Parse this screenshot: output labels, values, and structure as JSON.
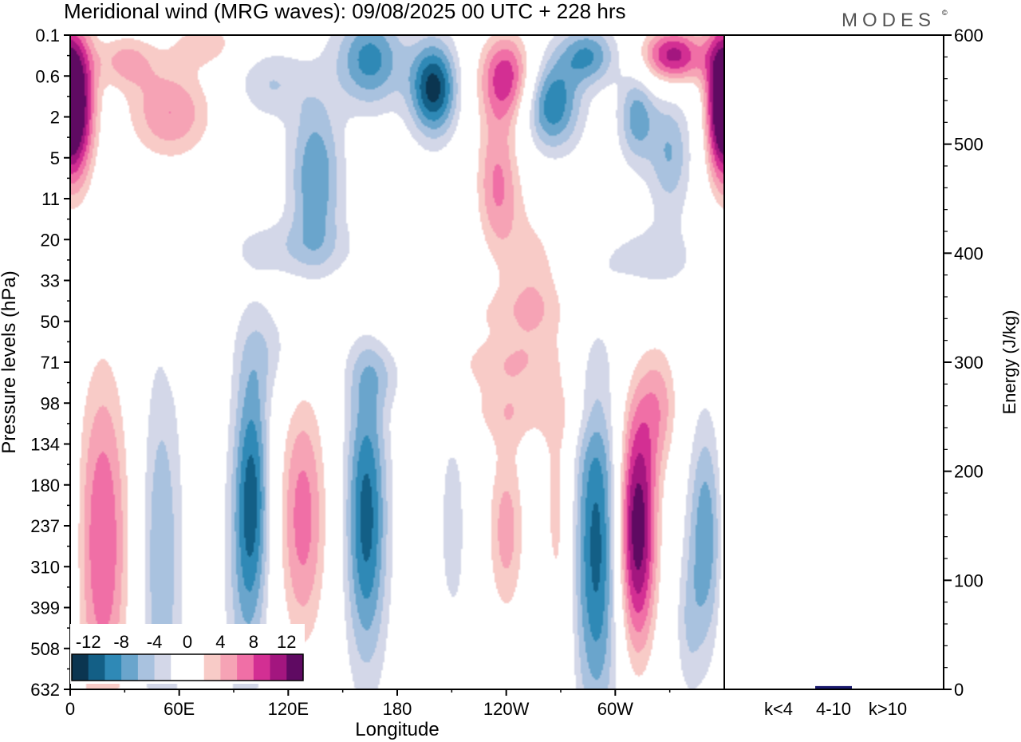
{
  "chart_data": {
    "type": "heatmap",
    "title": "Meridional wind (MRG waves):  09/08/2025  00 UTC  + 228 hrs",
    "brand": "MODES",
    "brand_mark": "©",
    "main_panel": {
      "xlabel": "Longitude",
      "ylabel": "Pressure levels (hPa)",
      "x_ticks": [
        "0",
        "60E",
        "120E",
        "180",
        "120W",
        "60W"
      ],
      "x_tick_values": [
        0,
        60,
        120,
        180,
        240,
        300
      ],
      "x_range": [
        0,
        360
      ],
      "y_ticks": [
        "0.1",
        "0.6",
        "2",
        "5",
        "11",
        "20",
        "33",
        "50",
        "71",
        "98",
        "134",
        "180",
        "237",
        "310",
        "399",
        "508",
        "632"
      ],
      "contour_levels": [
        -14,
        -12,
        -10,
        -8,
        -6,
        -4,
        -2,
        2,
        4,
        6,
        8,
        10,
        12,
        14
      ],
      "fields": [
        {
          "lon": 5,
          "lev": 1.7,
          "amp": 13,
          "slon": 7,
          "slev": 1.4
        },
        {
          "lon": 357,
          "lev": 1.7,
          "amp": 12,
          "slon": 6,
          "slev": 1.4
        },
        {
          "lon": 55,
          "lev": 1.9,
          "amp": 8,
          "slon": 18,
          "slev": 0.9
        },
        {
          "lon": 30,
          "lev": 0.6,
          "amp": 6,
          "slon": 12,
          "slev": 0.5
        },
        {
          "lon": 75,
          "lev": 0.2,
          "amp": 5,
          "slon": 14,
          "slev": 0.4
        },
        {
          "lon": 110,
          "lev": 1.2,
          "amp": -4,
          "slon": 14,
          "slev": 0.6
        },
        {
          "lon": 135,
          "lev": 3.5,
          "amp": -8,
          "slon": 10,
          "slev": 1.4
        },
        {
          "lon": 165,
          "lev": 0.6,
          "amp": -9,
          "slon": 13,
          "slev": 0.8
        },
        {
          "lon": 200,
          "lev": 1.3,
          "amp": -13,
          "slon": 9,
          "slev": 0.8
        },
        {
          "lon": 240,
          "lev": 1.0,
          "amp": 11,
          "slon": 11,
          "slev": 0.8
        },
        {
          "lon": 235,
          "lev": 3.6,
          "amp": 8,
          "slon": 9,
          "slev": 1.3
        },
        {
          "lon": 265,
          "lev": 1.7,
          "amp": -10,
          "slon": 11,
          "slev": 0.8
        },
        {
          "lon": 255,
          "lev": 6.0,
          "amp": 5,
          "slon": 13,
          "slev": 1.5
        },
        {
          "lon": 285,
          "lev": 0.5,
          "amp": -8,
          "slon": 11,
          "slev": 0.5
        },
        {
          "lon": 312,
          "lev": 2.0,
          "amp": -7,
          "slon": 7,
          "slev": 0.8
        },
        {
          "lon": 330,
          "lev": 2.9,
          "amp": -6,
          "slon": 8,
          "slev": 1.0
        },
        {
          "lon": 332,
          "lev": 0.5,
          "amp": 13,
          "slon": 13,
          "slev": 0.5
        },
        {
          "lon": 320,
          "lev": 5.5,
          "amp": -3,
          "slon": 20,
          "slev": 0.7
        },
        {
          "lon": 120,
          "lev": 5.2,
          "amp": -3,
          "slon": 25,
          "slev": 0.5
        },
        {
          "lon": 215,
          "lev": 6.8,
          "amp": 3,
          "slon": 45,
          "slev": 0.5
        },
        {
          "lon": 110,
          "lev": 7.7,
          "amp": -3,
          "slon": 13,
          "slev": 0.9
        },
        {
          "lon": 70,
          "lev": 8.0,
          "amp": 3,
          "slon": 8,
          "slev": 0.4
        },
        {
          "lon": 235,
          "lev": 8.0,
          "amp": 4,
          "slon": 25,
          "slev": 0.5
        },
        {
          "lon": 245,
          "lev": 9.2,
          "amp": 4,
          "slon": 30,
          "slev": 0.6
        },
        {
          "lon": 325,
          "lev": 9.0,
          "amp": 6,
          "slon": 8,
          "slev": 1.2
        },
        {
          "lon": 170,
          "lev": 8.3,
          "amp": -3,
          "slon": 12,
          "slev": 0.6
        },
        {
          "lon": 18,
          "lev": 12.4,
          "amp": 10,
          "slon": 11,
          "slev": 3.3
        },
        {
          "lon": 50,
          "lev": 12.8,
          "amp": -6,
          "slon": 8,
          "slev": 3.3
        },
        {
          "lon": 100,
          "lev": 11.2,
          "amp": -10,
          "slon": 7,
          "slev": 2.2
        },
        {
          "lon": 95,
          "lev": 13.8,
          "amp": -3,
          "slon": 8,
          "slev": 2.5
        },
        {
          "lon": 128,
          "lev": 11.8,
          "amp": 9,
          "slon": 10,
          "slev": 2.4
        },
        {
          "lon": 163,
          "lev": 11.8,
          "amp": -11,
          "slon": 8,
          "slev": 2.5
        },
        {
          "lon": 195,
          "lev": 12.2,
          "amp": 3,
          "slon": 6,
          "slev": 2.8
        },
        {
          "lon": 210,
          "lev": 12.1,
          "amp": -4,
          "slon": 5,
          "slev": 1.8
        },
        {
          "lon": 240,
          "lev": 12.1,
          "amp": 7,
          "slon": 8,
          "slev": 1.7
        },
        {
          "lon": 268,
          "lev": 11.5,
          "amp": 5,
          "slon": 6,
          "slev": 2.0
        },
        {
          "lon": 290,
          "lev": 12.5,
          "amp": -11,
          "slon": 9,
          "slev": 3.0
        },
        {
          "lon": 312,
          "lev": 12.1,
          "amp": 16,
          "slon": 8,
          "slev": 2.2
        },
        {
          "lon": 350,
          "lev": 12.3,
          "amp": -8,
          "slon": 7,
          "slev": 2.0
        },
        {
          "lon": 205,
          "lev": 15.4,
          "amp": 3,
          "slon": 7,
          "slev": 1.0
        },
        {
          "lon": 270,
          "lev": 15.4,
          "amp": 3,
          "slon": 4,
          "slev": 1.4
        },
        {
          "lon": 340,
          "lev": 14.5,
          "amp": -3,
          "slon": 5,
          "slev": 1.2
        }
      ]
    },
    "colorbar": {
      "tick_labels": [
        "-12",
        "-8",
        "-4",
        "0",
        "4",
        "8",
        "12"
      ],
      "colors": [
        "#0b3550",
        "#135f86",
        "#2f89b6",
        "#6aa5cc",
        "#a9c2df",
        "#d3d7e8",
        "#ffffff",
        "#ffffff",
        "#f8cbc7",
        "#f6a3b5",
        "#f06fa6",
        "#d32f93",
        "#a3167f",
        "#5f0a62"
      ]
    },
    "energy_panel": {
      "ylabel": "Energy (J/kg)",
      "y_ticks": [
        "0",
        "100",
        "200",
        "300",
        "400",
        "500",
        "600"
      ],
      "ylim": [
        0,
        600
      ],
      "categories": [
        "k<4",
        "4-10",
        "k>10"
      ],
      "values": [
        0.5,
        3,
        0.5
      ],
      "bar_color": "#1a1a6e"
    }
  }
}
